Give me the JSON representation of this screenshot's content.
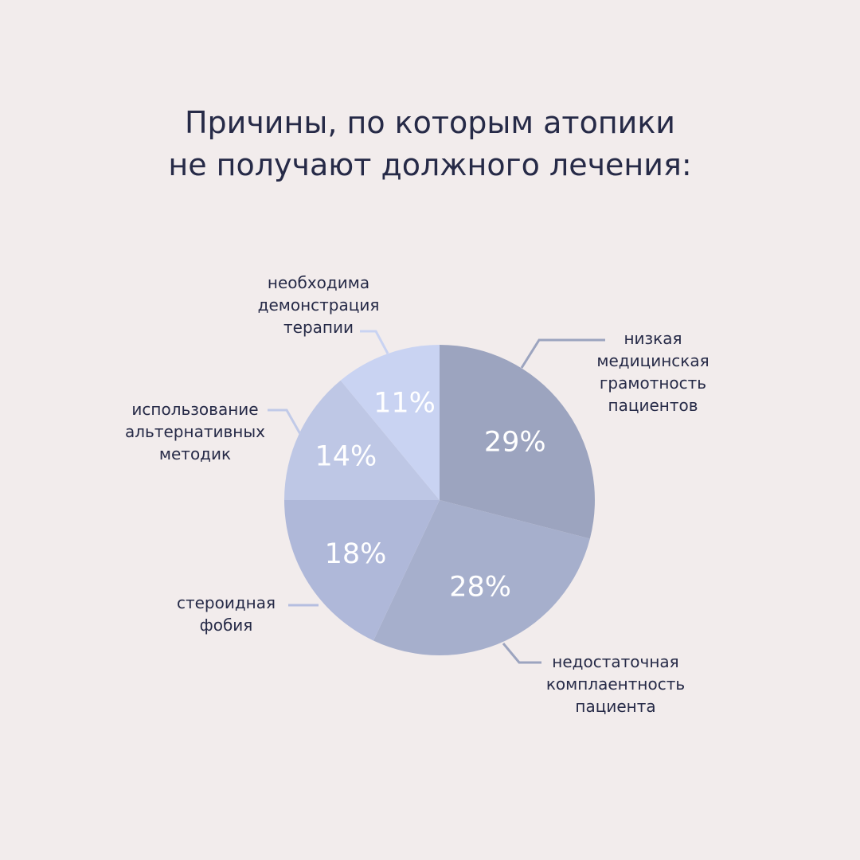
{
  "title": {
    "line1": "Причины, по которым атопики",
    "line2": "не получают должного лечения:"
  },
  "chart_data": {
    "type": "pie",
    "title": "Причины, по которым атопики не получают должного лечения:",
    "unit": "%",
    "start_angle_deg": 0,
    "direction": "clockwise",
    "slices": [
      {
        "label_lines": [
          "низкая",
          "медицинская",
          "грамотность",
          "пациентов"
        ],
        "value": 29,
        "value_label": "29%",
        "color": "#9ca4bf"
      },
      {
        "label_lines": [
          "недостаточная",
          "комплаентность",
          "пациента"
        ],
        "value": 28,
        "value_label": "28%",
        "color": "#a6afcc"
      },
      {
        "label_lines": [
          "стероидная",
          "фобия"
        ],
        "value": 18,
        "value_label": "18%",
        "color": "#afb8d9"
      },
      {
        "label_lines": [
          "использование",
          "альтернативных",
          "методик"
        ],
        "value": 14,
        "value_label": "14%",
        "color": "#bec7e5"
      },
      {
        "label_lines": [
          "необходима",
          "демонстрация",
          "терапии"
        ],
        "value": 11,
        "value_label": "11%",
        "color": "#c9d3f2"
      }
    ]
  }
}
